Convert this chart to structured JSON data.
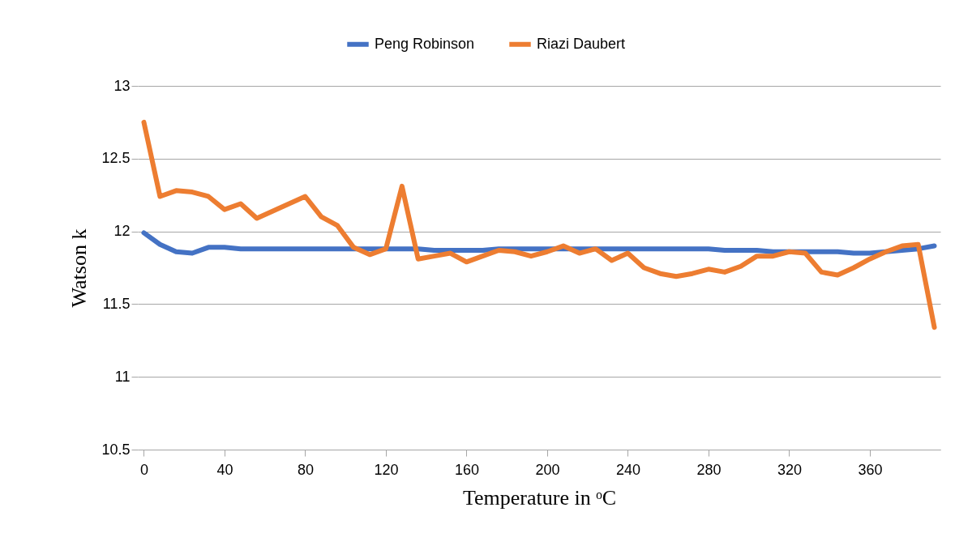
{
  "chart_data": {
    "type": "line",
    "x": [
      0,
      8,
      16,
      24,
      32,
      40,
      48,
      56,
      64,
      72,
      80,
      88,
      96,
      104,
      112,
      120,
      128,
      136,
      144,
      152,
      160,
      168,
      176,
      184,
      192,
      200,
      208,
      216,
      224,
      232,
      240,
      248,
      256,
      264,
      272,
      280,
      288,
      296,
      304,
      312,
      320,
      328,
      336,
      344,
      352,
      360,
      368,
      376,
      384,
      392
    ],
    "series": [
      {
        "name": "Peng Robinson",
        "color": "#4472c4",
        "values": [
          11.99,
          11.91,
          11.86,
          11.85,
          11.89,
          11.89,
          11.88,
          11.88,
          11.88,
          11.88,
          11.88,
          11.88,
          11.88,
          11.88,
          11.88,
          11.88,
          11.88,
          11.88,
          11.87,
          11.87,
          11.87,
          11.87,
          11.88,
          11.88,
          11.88,
          11.88,
          11.88,
          11.88,
          11.88,
          11.88,
          11.88,
          11.88,
          11.88,
          11.88,
          11.88,
          11.88,
          11.87,
          11.87,
          11.87,
          11.86,
          11.86,
          11.86,
          11.86,
          11.86,
          11.85,
          11.85,
          11.86,
          11.87,
          11.88,
          11.9
        ]
      },
      {
        "name": "Riazi Daubert",
        "color": "#ed7d31",
        "values": [
          12.75,
          12.24,
          12.28,
          12.27,
          12.24,
          12.15,
          12.19,
          12.09,
          12.14,
          12.19,
          12.24,
          12.1,
          12.04,
          11.89,
          11.84,
          11.88,
          12.31,
          11.81,
          11.83,
          11.85,
          11.79,
          11.83,
          11.87,
          11.86,
          11.83,
          11.86,
          11.9,
          11.85,
          11.88,
          11.8,
          11.85,
          11.75,
          11.71,
          11.69,
          11.71,
          11.74,
          11.72,
          11.76,
          11.83,
          11.83,
          11.86,
          11.85,
          11.72,
          11.7,
          11.75,
          11.81,
          11.86,
          11.9,
          11.91,
          11.34
        ]
      }
    ],
    "xlabel": "Temperature in ᵒC",
    "ylabel": "Watson k",
    "xlim": [
      -3,
      395
    ],
    "xticks": [
      0,
      40,
      80,
      120,
      160,
      200,
      240,
      280,
      320,
      360
    ],
    "ylim": [
      10.5,
      13
    ],
    "yticks": [
      10.5,
      11,
      11.5,
      12,
      12.5,
      13
    ],
    "grid": "y",
    "legend": "top",
    "marker": "none",
    "line_style": "solid"
  }
}
